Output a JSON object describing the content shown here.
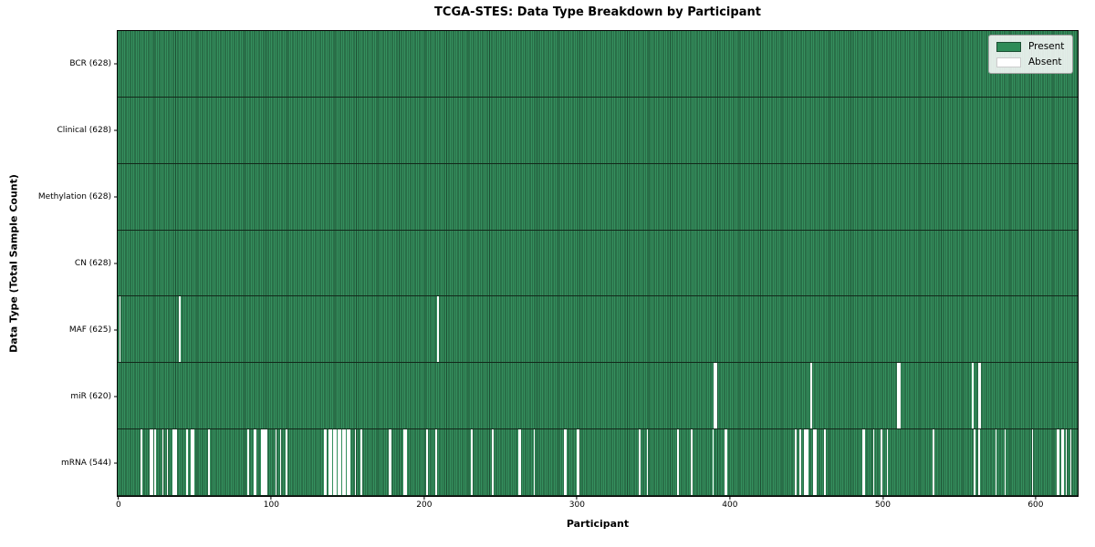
{
  "chart_data": {
    "type": "heatmap",
    "title": "TCGA-STES: Data Type Breakdown by Participant",
    "xlabel": "Participant",
    "ylabel": "Data Type (Total Sample Count)",
    "n_participants": 628,
    "xlim": [
      -0.5,
      627.5
    ],
    "x_ticks": [
      0,
      100,
      200,
      300,
      400,
      500,
      600
    ],
    "grid": false,
    "legend": {
      "position": "upper right",
      "entries": [
        {
          "label": "Present",
          "color": "#2e8b57"
        },
        {
          "label": "Absent",
          "color": "#ffffff"
        }
      ]
    },
    "colors": {
      "present_fill": "#2e8b57",
      "present_edge": "#1d4e33",
      "absent_fill": "#ffffff",
      "axis": "#000000"
    },
    "rows": [
      {
        "name": "BCR",
        "label": "BCR (628)",
        "present_count": 628,
        "absent_participants": []
      },
      {
        "name": "Clinical",
        "label": "Clinical (628)",
        "present_count": 628,
        "absent_participants": []
      },
      {
        "name": "Methylation",
        "label": "Methylation (628)",
        "present_count": 628,
        "absent_participants": []
      },
      {
        "name": "CN",
        "label": "CN (628)",
        "present_count": 628,
        "absent_participants": []
      },
      {
        "name": "MAF",
        "label": "MAF (625)",
        "present_count": 625,
        "absent_participants": [
          1,
          40,
          209
        ]
      },
      {
        "name": "miR",
        "label": "miR (620)",
        "present_count": 620,
        "absent_participants": [
          390,
          391,
          453,
          510,
          511,
          559,
          563,
          564
        ]
      },
      {
        "name": "mRNA",
        "label": "mRNA (544)",
        "present_count": 544,
        "absent_participants": [
          15,
          21,
          22,
          24,
          29,
          32,
          36,
          37,
          38,
          45,
          48,
          49,
          59,
          85,
          89,
          90,
          94,
          95,
          96,
          97,
          103,
          106,
          110,
          135,
          136,
          138,
          139,
          141,
          142,
          144,
          145,
          147,
          148,
          150,
          151,
          155,
          159,
          177,
          178,
          187,
          188,
          202,
          208,
          231,
          245,
          262,
          263,
          272,
          292,
          293,
          300,
          301,
          341,
          346,
          366,
          375,
          389,
          397,
          398,
          443,
          446,
          449,
          450,
          451,
          455,
          456,
          462,
          487,
          488,
          494,
          499,
          503,
          533,
          560,
          563,
          574,
          580,
          598,
          614,
          615,
          617,
          618,
          620,
          623
        ]
      }
    ]
  }
}
